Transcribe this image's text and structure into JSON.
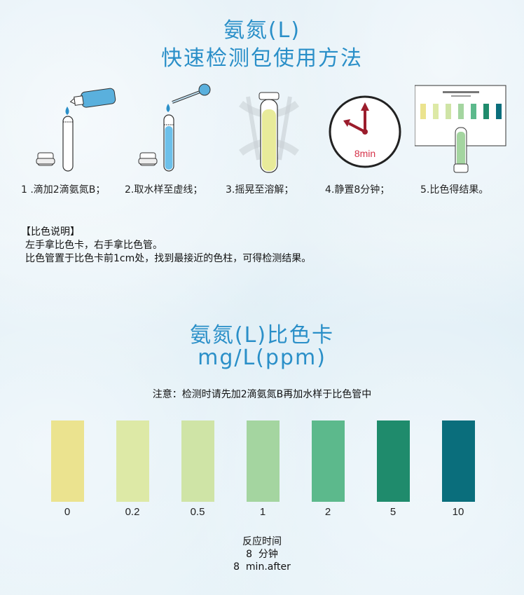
{
  "title": {
    "line1": "氨氮(L)",
    "line2": "快速检测包使用方法"
  },
  "steps": [
    {
      "label": "1 .滴加2滴氨氮B；",
      "icon": "dropper-bottle-icon"
    },
    {
      "label": "2.取水样至虚线；",
      "icon": "pipette-icon"
    },
    {
      "label": "3.摇晃至溶解；",
      "icon": "shaking-tube-icon"
    },
    {
      "label": "4.静置8分钟；",
      "icon": "clock-icon",
      "clock_text": "8min"
    },
    {
      "label": "5.比色得结果。",
      "icon": "color-card-icon"
    }
  ],
  "instructions": {
    "heading": "【比色说明】",
    "line1": "左手拿比色卡，右手拿比色管。",
    "line2": "比色管置于比色卡前1cm处，找到最接近的色柱，可得检测结果。"
  },
  "color_card": {
    "title": "氨氮(L)比色卡",
    "unit": "mg/L(ppm)",
    "note": "注意：检测时请先加2滴氨氮B再加水样于比色管中",
    "swatches": [
      {
        "label": "0",
        "color": "#ebe38f"
      },
      {
        "label": "0.2",
        "color": "#dde9a6"
      },
      {
        "label": "0.5",
        "color": "#cfe4a6"
      },
      {
        "label": "1",
        "color": "#a4d5a0"
      },
      {
        "label": "2",
        "color": "#5cb98c"
      },
      {
        "label": "5",
        "color": "#1f8b6c"
      },
      {
        "label": "10",
        "color": "#0a6e7c"
      }
    ]
  },
  "reaction": {
    "line1": "反应时间",
    "line2": "8  分钟",
    "line3": "8  min.after"
  }
}
